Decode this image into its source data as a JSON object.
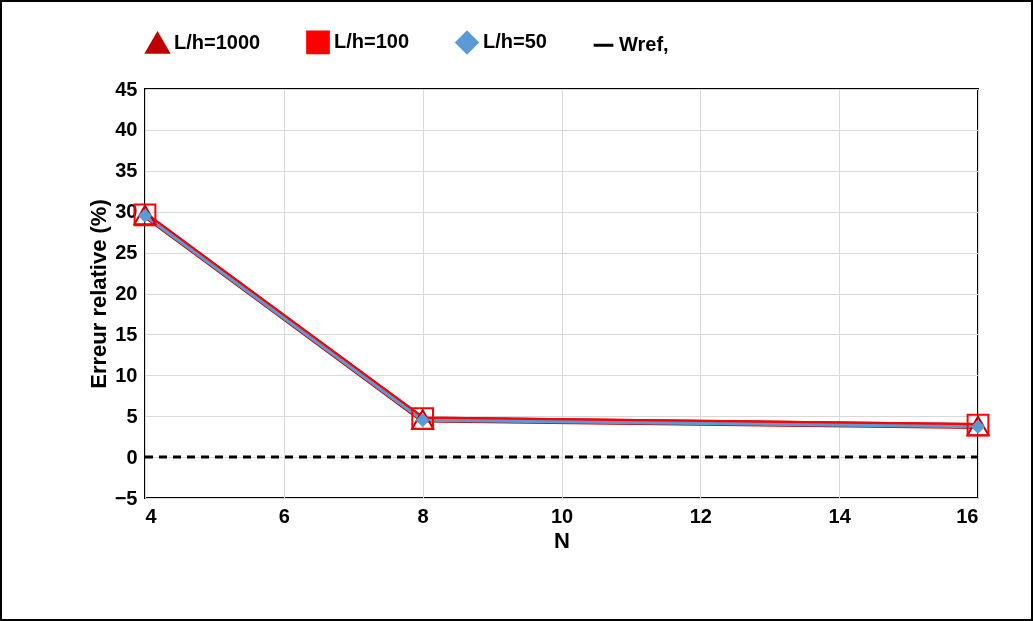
{
  "chart_data": {
    "type": "line",
    "xlabel": "N",
    "ylabel": "Erreur relative (%)",
    "x": [
      4,
      8,
      16
    ],
    "series": [
      {
        "name": "L/h=1000",
        "color": "#c00000",
        "marker": "triangle",
        "values": [
          29.6,
          4.6,
          3.8
        ]
      },
      {
        "name": "L/h=100",
        "color": "#ff0000",
        "marker": "square",
        "values": [
          29.6,
          4.7,
          3.9
        ]
      },
      {
        "name": "L/h=50",
        "color": "#5b9bd5",
        "marker": "diamond",
        "values": [
          29.5,
          4.5,
          3.7
        ]
      },
      {
        "name": "Wref,",
        "color": "#000000",
        "marker": "none",
        "line_style": "dashed",
        "x": [
          4,
          16
        ],
        "values": [
          0,
          0
        ]
      }
    ],
    "xlim": [
      4,
      16
    ],
    "xticks": [
      4,
      6,
      8,
      10,
      12,
      14,
      16
    ],
    "ylim": [
      -5,
      45
    ],
    "yticks": [
      -5,
      0,
      5,
      10,
      15,
      20,
      25,
      30,
      35,
      40,
      45
    ],
    "grid": true,
    "legend": "top"
  }
}
